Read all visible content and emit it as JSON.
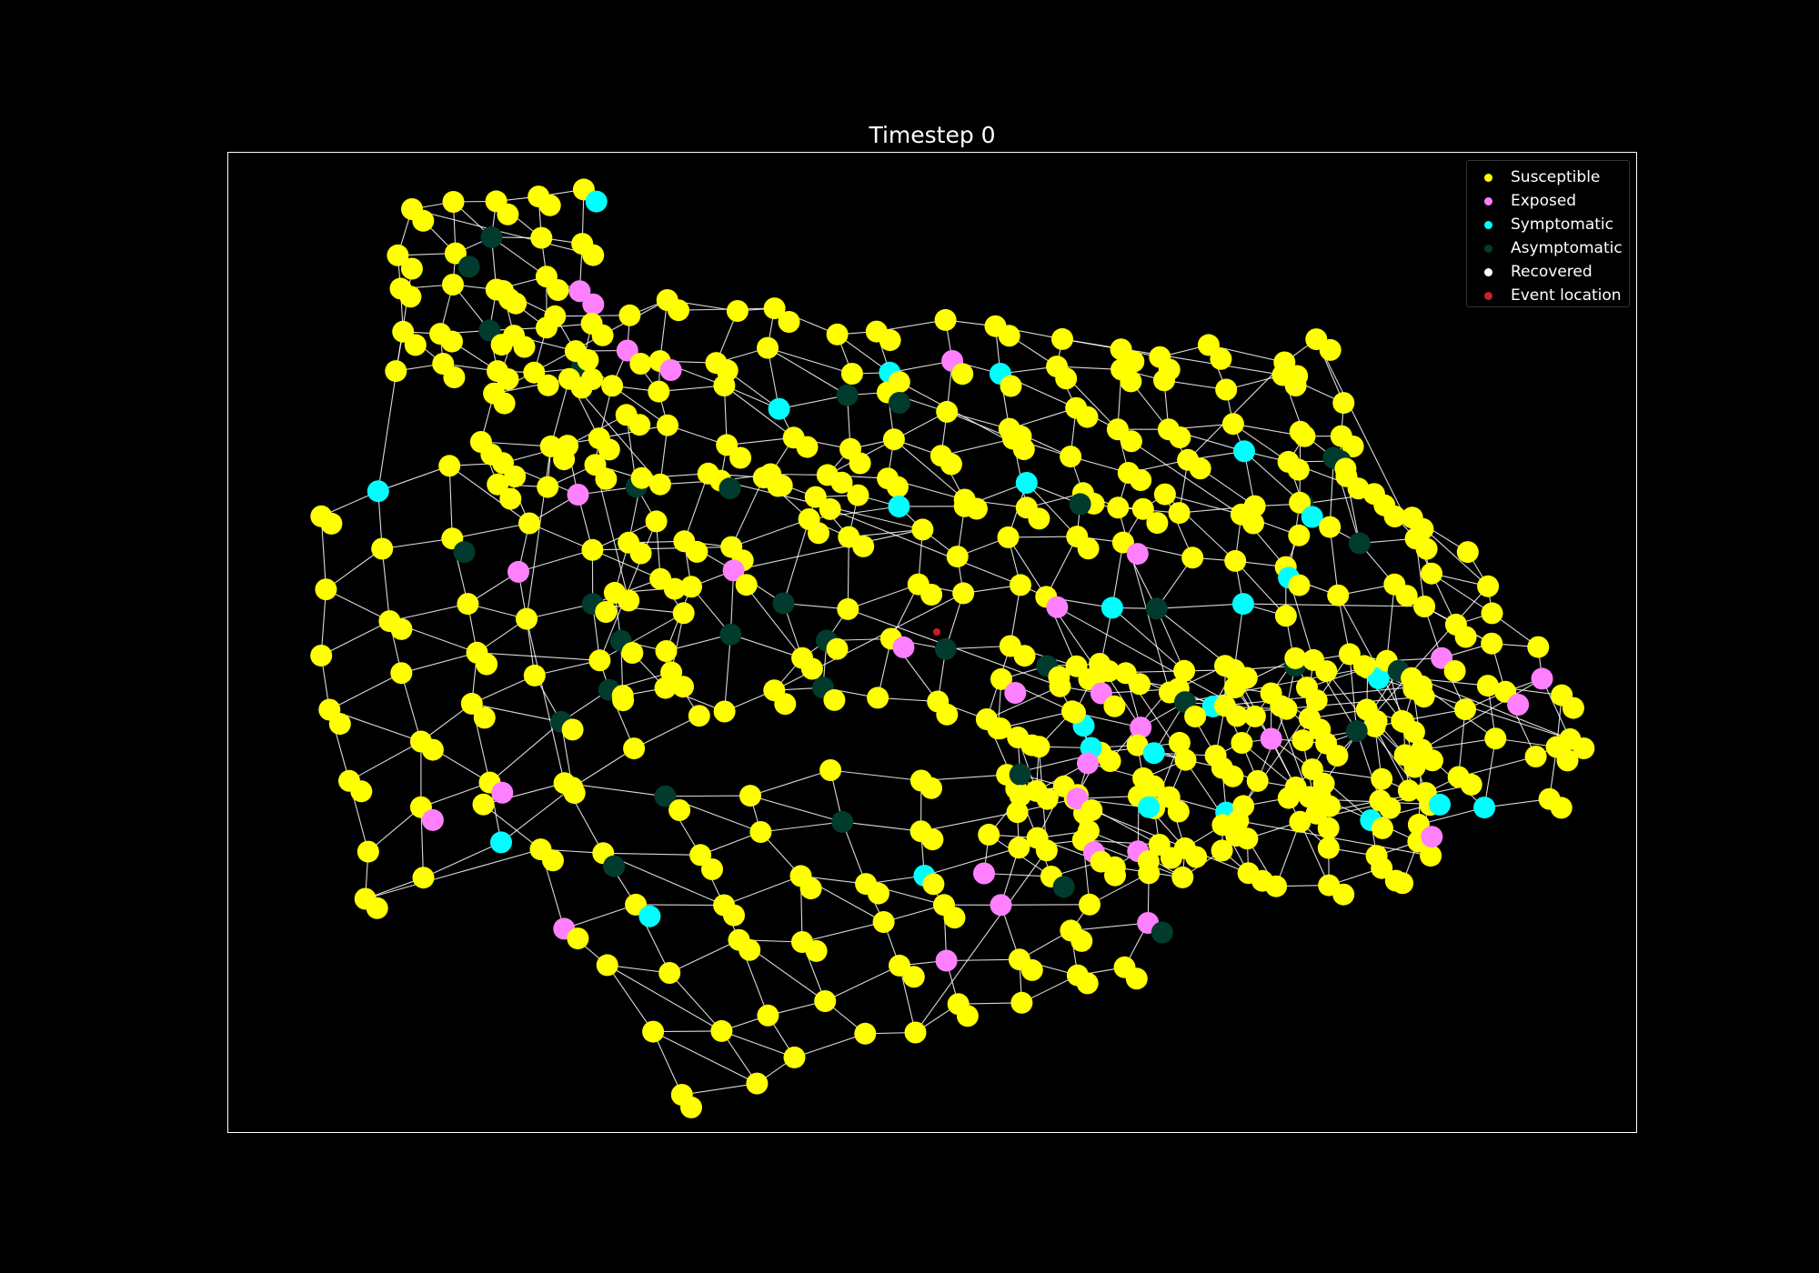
{
  "figure": {
    "title": "Timestep 0",
    "background": "#000000",
    "edge_color": "#ffffff"
  },
  "legend": {
    "placement": "top-right",
    "items": [
      {
        "label": "Susceptible",
        "color": "#ffff00"
      },
      {
        "label": "Exposed",
        "color": "#ff80ff"
      },
      {
        "label": "Symptomatic",
        "color": "#00ffff"
      },
      {
        "label": "Asymptomatic",
        "color": "#003b2e"
      },
      {
        "label": "Recovered",
        "color": "#ffffff"
      },
      {
        "label": "Event location",
        "color": "#c8202a"
      }
    ]
  }
}
